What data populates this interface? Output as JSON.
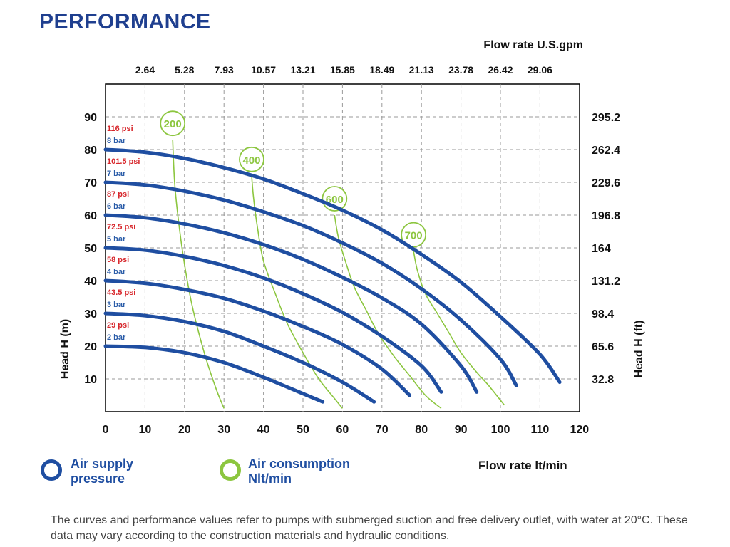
{
  "title": "PERFORMANCE",
  "colors": {
    "title": "#1f3f8f",
    "curve": "#1f4ea1",
    "air": "#8cc63f",
    "psi": "#d7262b",
    "bar": "#2a5ca8"
  },
  "chart_data": {
    "type": "line",
    "x_top_title": "Flow rate U.S.gpm",
    "x_top_ticks": [
      "2.64",
      "5.28",
      "7.93",
      "10.57",
      "13.21",
      "15.85",
      "18.49",
      "21.13",
      "23.78",
      "26.42",
      "29.06"
    ],
    "xlabel": "Flow rate  lt/min",
    "x_ticks": [
      "0",
      "10",
      "20",
      "30",
      "40",
      "50",
      "60",
      "70",
      "80",
      "90",
      "100",
      "110",
      "120"
    ],
    "xlim": [
      0,
      120
    ],
    "ylabel_left": "Head H (m)",
    "y_left_ticks": [
      "10",
      "20",
      "30",
      "40",
      "50",
      "60",
      "70",
      "80",
      "90"
    ],
    "ylabel_right": "Head H (ft)",
    "y_right_ticks": [
      "32.8",
      "65.6",
      "98.4",
      "131.2",
      "164",
      "196.8",
      "229.6",
      "262.4",
      "295.2"
    ],
    "ylim": [
      0,
      100
    ],
    "grid": true,
    "pressure_series": [
      {
        "psi": "29 psi",
        "bar": "2 bar",
        "x": [
          0,
          10,
          20,
          30,
          40,
          50,
          55
        ],
        "y": [
          20,
          19.6,
          18,
          15,
          10.5,
          5.5,
          3
        ]
      },
      {
        "psi": "43.5 psi",
        "bar": "3 bar",
        "x": [
          0,
          10,
          20,
          30,
          40,
          50,
          60,
          68
        ],
        "y": [
          30,
          29.3,
          27.5,
          24.5,
          20,
          15,
          9,
          3
        ]
      },
      {
        "psi": "58 psi",
        "bar": "4 bar",
        "x": [
          0,
          10,
          20,
          30,
          40,
          50,
          60,
          70,
          77
        ],
        "y": [
          40,
          39.2,
          37.3,
          34.6,
          30.7,
          26,
          20.5,
          13,
          5
        ]
      },
      {
        "psi": "72.5 psi",
        "bar": "5 bar",
        "x": [
          0,
          10,
          20,
          30,
          40,
          50,
          60,
          70,
          80,
          85
        ],
        "y": [
          50,
          49.3,
          47.4,
          44.6,
          40.8,
          36,
          30.3,
          23,
          14,
          6
        ]
      },
      {
        "psi": "87 psi",
        "bar": "6 bar",
        "x": [
          0,
          10,
          20,
          30,
          40,
          50,
          60,
          70,
          80,
          90,
          94
        ],
        "y": [
          60,
          59.2,
          57.3,
          54.6,
          51,
          46.5,
          41,
          34.7,
          26.7,
          14,
          6
        ]
      },
      {
        "psi": "101.5 psi",
        "bar": "7 bar",
        "x": [
          0,
          10,
          20,
          30,
          40,
          50,
          60,
          70,
          80,
          90,
          100,
          104
        ],
        "y": [
          70,
          69.2,
          67.3,
          64.6,
          61,
          56.8,
          51.5,
          45.3,
          37.5,
          28,
          16,
          8
        ]
      },
      {
        "psi": "116 psi",
        "bar": "8 bar",
        "x": [
          0,
          10,
          20,
          30,
          40,
          50,
          60,
          70,
          80,
          90,
          100,
          110,
          115
        ],
        "y": [
          80,
          79.2,
          77.3,
          74.5,
          71,
          66.5,
          61.5,
          55.5,
          48,
          39.5,
          29,
          17.5,
          9
        ]
      }
    ],
    "air_series": [
      {
        "label": "200",
        "label_at": [
          17,
          88
        ],
        "x": [
          17,
          17.5,
          18.5,
          20,
          22,
          25,
          28,
          30
        ],
        "y": [
          83,
          70,
          58,
          45,
          32,
          18,
          7,
          1
        ]
      },
      {
        "label": "400",
        "label_at": [
          37,
          77
        ],
        "x": [
          37,
          37.5,
          38.5,
          40,
          43,
          46,
          50,
          54,
          58,
          60
        ],
        "y": [
          72,
          65,
          56,
          46,
          36,
          27,
          18,
          10,
          4,
          1
        ]
      },
      {
        "label": "600",
        "label_at": [
          58,
          65
        ],
        "x": [
          58,
          59,
          61,
          63,
          66,
          69,
          73,
          77,
          81,
          85
        ],
        "y": [
          60,
          53,
          45,
          38,
          31,
          24,
          17,
          11,
          5,
          1
        ]
      },
      {
        "label": "700",
        "label_at": [
          78,
          54
        ],
        "x": [
          78,
          79,
          81,
          84,
          87,
          90,
          94,
          97,
          101
        ],
        "y": [
          49,
          43,
          36,
          30,
          24,
          18,
          12,
          8,
          2
        ]
      }
    ]
  },
  "legend": {
    "supply_line1": "Air supply",
    "supply_line2": "pressure",
    "consumption_line1": "Air consumption",
    "consumption_line2": "Nlt/min"
  },
  "footnote": "The curves and performance values refer to pumps with submerged suction and free delivery outlet, with water at 20°C. These data may vary according to the construction materials and hydraulic conditions."
}
